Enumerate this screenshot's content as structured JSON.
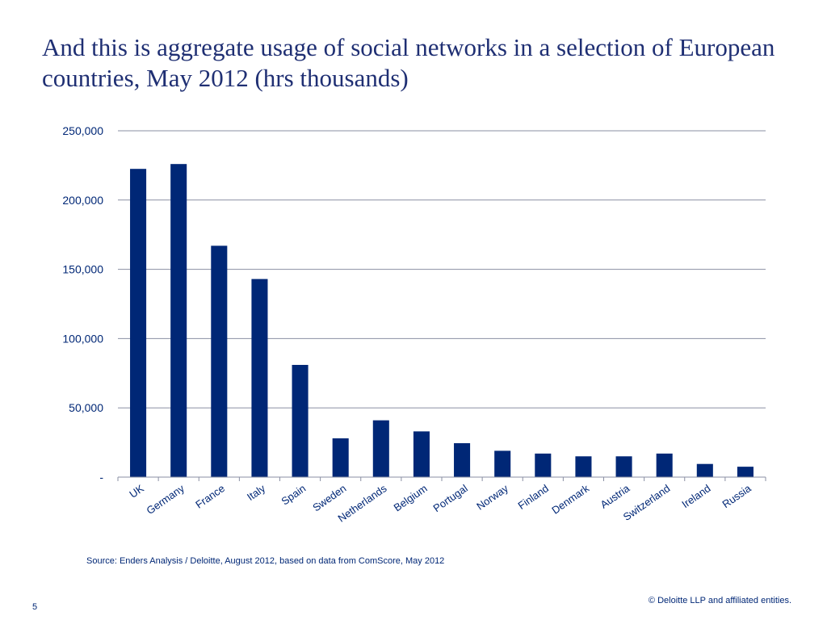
{
  "slide": {
    "title": "And this is aggregate usage of social networks in a selection of European countries, May 2012 (hrs thousands)",
    "source": "Source: Enders Analysis / Deloitte, August 2012, based on data from ComScore, May 2012",
    "page_number": "5",
    "copyright": "© Deloitte LLP and affiliated entities."
  },
  "chart_data": {
    "type": "bar",
    "title": "And this is aggregate usage of social networks in a selection of European countries, May 2012 (hrs thousands)",
    "xlabel": "",
    "ylabel": "",
    "categories": [
      "UK",
      "Germany",
      "France",
      "Italy",
      "Spain",
      "Sweden",
      "Netherlands",
      "Belgium",
      "Portugal",
      "Norway",
      "Finland",
      "Denmark",
      "Austria",
      "Switzerland",
      "Ireland",
      "Russia"
    ],
    "values": [
      222500,
      226000,
      167000,
      143000,
      81000,
      28000,
      41000,
      33000,
      24500,
      19000,
      17000,
      15000,
      15000,
      17000,
      9500,
      7500
    ],
    "ylim": [
      0,
      250000
    ],
    "yticks": [
      0,
      50000,
      100000,
      150000,
      200000,
      250000
    ],
    "ytick_labels": [
      "-",
      "50,000",
      "100,000",
      "150,000",
      "200,000",
      "250,000"
    ],
    "grid": true,
    "bar_color": "#002776",
    "legend": "none"
  }
}
